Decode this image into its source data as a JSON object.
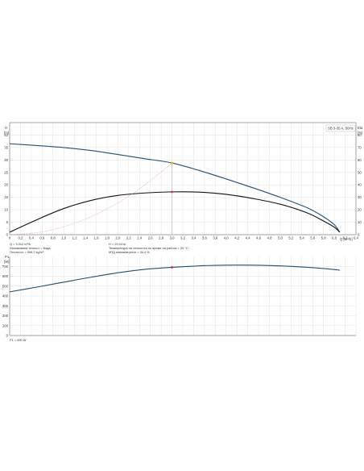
{
  "chart_data": [
    {
      "type": "line",
      "title": "",
      "model_label": "SB 3-35 A, 50Hz",
      "xlabel": "Q [m³/h]",
      "ylabel_left": "H",
      "ylabel_left_unit": "[m]",
      "ylabel_right": "Eta",
      "ylabel_right_unit": "[%]",
      "xlim": [
        0,
        6.4
      ],
      "ylim_left": [
        0,
        45
      ],
      "ylim_right": [
        0,
        90
      ],
      "x_ticks": [
        "0",
        "0,2",
        "0,4",
        "0,6",
        "0,8",
        "1,0",
        "1,2",
        "1,4",
        "1,6",
        "1,8",
        "2,0",
        "2,2",
        "2,4",
        "2,6",
        "2,8",
        "3,0",
        "3,2",
        "3,4",
        "3,6",
        "3,8",
        "4,0",
        "4,2",
        "4,4",
        "4,6",
        "4,8",
        "5,0",
        "5,2",
        "5,4",
        "5,6",
        "5,8",
        "6,0",
        "6,2",
        "6,4"
      ],
      "y_left_ticks": [
        "0",
        "5",
        "10",
        "15",
        "20",
        "25",
        "30",
        "35",
        "40"
      ],
      "y_right_ticks": [
        "0",
        "10",
        "20",
        "30",
        "40",
        "50",
        "60",
        "70",
        "80"
      ],
      "grid": true,
      "series": [
        {
          "axis": "left",
          "color": "#1f4e79",
          "x": [
            0,
            0.5,
            1.0,
            1.5,
            2.0,
            2.5,
            3.0,
            3.5,
            4.0,
            4.5,
            5.0,
            5.5,
            5.8,
            6.0,
            6.1
          ],
          "y": [
            36.5,
            35.8,
            35.0,
            33.8,
            32.2,
            30.5,
            28.8,
            25.8,
            22.4,
            18.8,
            15.0,
            10.8,
            7.2,
            4.0,
            1.0
          ]
        },
        {
          "axis": "right",
          "color": "#111111",
          "x": [
            0,
            0.5,
            1.0,
            1.5,
            2.0,
            2.5,
            3.0,
            3.5,
            4.0,
            4.5,
            5.0,
            5.5,
            5.8,
            6.0,
            6.1
          ],
          "y": [
            2,
            12,
            21,
            27.5,
            31.5,
            33.5,
            34.4,
            34.2,
            32.4,
            29,
            24.5,
            17.5,
            11,
            6,
            2
          ]
        },
        {
          "axis": "left",
          "color": "#e79a9a",
          "style": "dotted",
          "x": [
            0,
            0.5,
            1.0,
            1.5,
            2.0,
            2.5,
            3.0
          ],
          "y": [
            0,
            0.8,
            3.2,
            7.2,
            12.8,
            20.0,
            28.8
          ]
        }
      ],
      "duty_point": {
        "x": 3.0,
        "y": 28.8,
        "eta": 34.4
      }
    },
    {
      "type": "line",
      "title": "",
      "ylabel": "P1",
      "ylabel_unit": "[W]",
      "xlim": [
        0,
        6.4
      ],
      "ylim": [
        0,
        800
      ],
      "y_ticks": [
        "0",
        "100",
        "200",
        "300",
        "400",
        "500",
        "600",
        "700"
      ],
      "grid": true,
      "series": [
        {
          "color": "#1f4e79",
          "x": [
            0,
            0.5,
            1.0,
            1.5,
            2.0,
            2.5,
            3.0,
            3.5,
            4.0,
            4.5,
            5.0,
            5.5,
            6.0,
            6.1
          ],
          "y": [
            442,
            490,
            540,
            590,
            635,
            670,
            690,
            705,
            712,
            712,
            705,
            690,
            668,
            660
          ]
        }
      ],
      "duty_point": {
        "x": 3.0,
        "y": 690
      }
    }
  ],
  "info": {
    "q": "Q = 3.012 m³/h",
    "h": "H = 29.04 m",
    "liquid": "Изпомпвана течност = Вода",
    "temperature": "Температура на течността по време на работа = 20 °C",
    "density": "Плътност = 998.2 kg/m³",
    "efficiency": "КПД помпа/агрегат = 34.4 %",
    "p1": "P1 = 690 W"
  }
}
